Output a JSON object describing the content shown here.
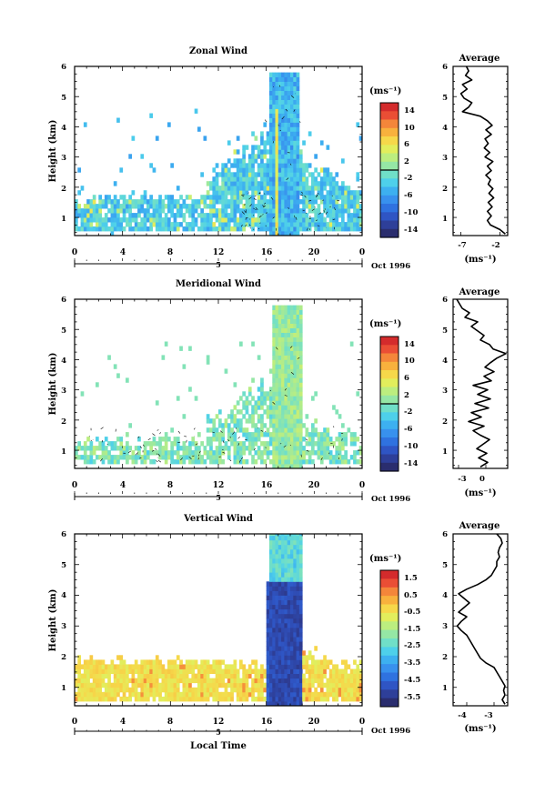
{
  "figure": {
    "xlabel": "Local Time",
    "ylabel": "Height (km)",
    "date_label": "Oct 1996",
    "day_label": "5",
    "x_ticks": [
      "0",
      "4",
      "8",
      "12",
      "16",
      "20",
      "0"
    ],
    "y_ticks": [
      "1",
      "2",
      "3",
      "4",
      "5",
      "6"
    ],
    "colorbar_unit": "(ms⁻¹)",
    "profile_title": "Average",
    "profile_unit": "(ms⁻¹)"
  },
  "chart_data": [
    {
      "type": "heatmap",
      "title": "Zonal Wind",
      "xlabel": "",
      "ylabel": "Height (km)",
      "xlim": [
        0,
        24
      ],
      "ylim": [
        0.4,
        6
      ],
      "colorbar_ticks": [
        "14",
        "10",
        "6",
        "2",
        "-2",
        "-6",
        "-10",
        "-14"
      ],
      "colorbar_range": [
        -16,
        16
      ],
      "colorbar_zero_line": 0,
      "profile": {
        "title": "Average",
        "xlabel": "(ms⁻¹)",
        "xticks": [
          "-7",
          "-2"
        ],
        "xlim": [
          -8,
          -1
        ],
        "heights": [
          0.45,
          0.6,
          0.75,
          0.9,
          1.05,
          1.2,
          1.35,
          1.5,
          1.65,
          1.8,
          1.95,
          2.1,
          2.25,
          2.4,
          2.55,
          2.7,
          2.85,
          3.0,
          3.15,
          3.3,
          3.45,
          3.6,
          3.75,
          3.9,
          4.05,
          4.2,
          4.35,
          4.5,
          4.65,
          4.8,
          4.95,
          5.1,
          5.25,
          5.4,
          5.55,
          5.7,
          5.85,
          6.0
        ],
        "values": [
          -1.3,
          -2.0,
          -3.2,
          -3.6,
          -3.1,
          -3.6,
          -3.0,
          -3.5,
          -2.8,
          -3.4,
          -2.9,
          -3.5,
          -3.2,
          -3.8,
          -3.1,
          -3.6,
          -2.9,
          -3.9,
          -3.3,
          -4.0,
          -3.5,
          -3.9,
          -3.1,
          -3.8,
          -3.0,
          -3.6,
          -4.5,
          -6.8,
          -6.0,
          -5.6,
          -6.6,
          -7.0,
          -6.2,
          -6.8,
          -5.6,
          -6.4,
          -6.0,
          -6.3
        ]
      }
    },
    {
      "type": "heatmap",
      "title": "Meridional Wind",
      "xlabel": "",
      "ylabel": "Height (km)",
      "xlim": [
        0,
        24
      ],
      "ylim": [
        0.4,
        6
      ],
      "colorbar_ticks": [
        "14",
        "10",
        "6",
        "2",
        "-2",
        "-6",
        "-10",
        "-14"
      ],
      "colorbar_range": [
        -16,
        16
      ],
      "colorbar_zero_line": 0,
      "profile": {
        "title": "Average",
        "xlabel": "(ms⁻¹)",
        "xticks": [
          "-3",
          "0"
        ],
        "xlim": [
          -3.6,
          2.4
        ],
        "heights": [
          0.45,
          0.6,
          0.75,
          0.9,
          1.05,
          1.2,
          1.35,
          1.5,
          1.65,
          1.8,
          1.95,
          2.1,
          2.25,
          2.4,
          2.55,
          2.7,
          2.85,
          3.0,
          3.15,
          3.3,
          3.45,
          3.6,
          3.75,
          3.9,
          4.05,
          4.2,
          4.35,
          4.5,
          4.65,
          4.8,
          4.95,
          5.1,
          5.25,
          5.4,
          5.55,
          5.7,
          5.85,
          6.0
        ],
        "values": [
          -0.6,
          0.2,
          -0.8,
          0.1,
          -1.0,
          -0.3,
          0.4,
          -0.6,
          -1.4,
          -0.2,
          -1.9,
          -0.5,
          -1.6,
          0.3,
          -1.2,
          0.5,
          -0.9,
          0.2,
          -1.4,
          0.6,
          -0.2,
          0.9,
          -0.1,
          0.5,
          1.2,
          2.2,
          0.8,
          0.4,
          -0.6,
          -0.2,
          -0.9,
          -1.6,
          -0.9,
          -2.3,
          -1.8,
          -2.6,
          -2.9,
          -3.2
        ]
      }
    },
    {
      "type": "heatmap",
      "title": "Vertical Wind",
      "xlabel": "Local Time",
      "ylabel": "Height (km)",
      "xlim": [
        0,
        24
      ],
      "ylim": [
        0.4,
        6
      ],
      "colorbar_ticks": [
        "1.5",
        "0.5",
        "-0.5",
        "-1.5",
        "-2.5",
        "-3.5",
        "-4.5",
        "-5.5"
      ],
      "colorbar_range": [
        -6,
        2
      ],
      "colorbar_zero_line": null,
      "profile": {
        "title": "Average",
        "xlabel": "(ms⁻¹)",
        "xticks": [
          "-4",
          "-3"
        ],
        "xlim": [
          -4.5,
          -2.5
        ],
        "heights": [
          0.45,
          0.6,
          0.75,
          0.9,
          1.05,
          1.2,
          1.35,
          1.5,
          1.65,
          1.8,
          1.95,
          2.1,
          2.25,
          2.4,
          2.55,
          2.7,
          2.85,
          3.0,
          3.15,
          3.3,
          3.45,
          3.6,
          3.75,
          3.9,
          4.05,
          4.2,
          4.35,
          4.5,
          4.65,
          4.8,
          4.95,
          5.1,
          5.25,
          5.4,
          5.55,
          5.7,
          5.85,
          6.0
        ],
        "values": [
          -2.6,
          -2.7,
          -2.6,
          -2.65,
          -2.6,
          -2.7,
          -2.8,
          -2.9,
          -3.0,
          -3.3,
          -3.5,
          -3.6,
          -3.7,
          -3.8,
          -3.9,
          -4.0,
          -4.2,
          -4.35,
          -4.2,
          -4.0,
          -4.3,
          -4.1,
          -3.9,
          -4.1,
          -4.3,
          -4.0,
          -3.6,
          -3.3,
          -3.1,
          -3.0,
          -2.9,
          -2.9,
          -2.8,
          -2.85,
          -2.8,
          -2.7,
          -2.75,
          -2.9
        ]
      }
    }
  ]
}
